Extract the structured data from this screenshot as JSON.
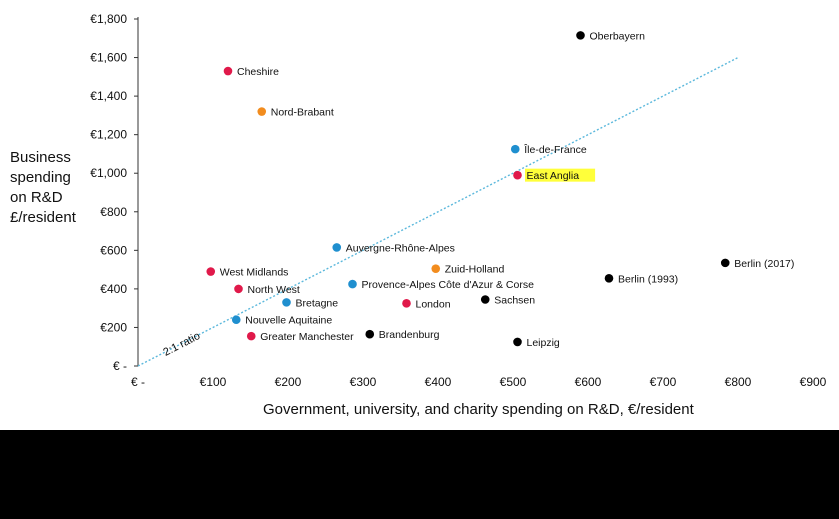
{
  "chart_data": {
    "type": "scatter",
    "title": "",
    "xlabel": "Government, university, and charity spending on R&D, €/resident",
    "ylabel": [
      "Business",
      "spending",
      "on R&D",
      "£/resident"
    ],
    "xlim": [
      0,
      900
    ],
    "ylim": [
      0,
      1800
    ],
    "x_ticks": [
      {
        "value": 0,
        "label": "€ -"
      },
      {
        "value": 100,
        "label": "€100"
      },
      {
        "value": 200,
        "label": "€200"
      },
      {
        "value": 300,
        "label": "€300"
      },
      {
        "value": 400,
        "label": "€400"
      },
      {
        "value": 500,
        "label": "€500"
      },
      {
        "value": 600,
        "label": "€600"
      },
      {
        "value": 700,
        "label": "€700"
      },
      {
        "value": 800,
        "label": "€800"
      },
      {
        "value": 900,
        "label": "€900"
      }
    ],
    "y_ticks": [
      {
        "value": 0,
        "label": "€ -"
      },
      {
        "value": 200,
        "label": "€200"
      },
      {
        "value": 400,
        "label": "€400"
      },
      {
        "value": 600,
        "label": "€600"
      },
      {
        "value": 800,
        "label": "€800"
      },
      {
        "value": 1000,
        "label": "€1,000"
      },
      {
        "value": 1200,
        "label": "€1,200"
      },
      {
        "value": 1400,
        "label": "€1,400"
      },
      {
        "value": 1600,
        "label": "€1,600"
      },
      {
        "value": 1800,
        "label": "€1,800"
      }
    ],
    "grid": false,
    "legend": "none",
    "colors": {
      "red": "#e0194a",
      "orange": "#f28c1e",
      "blue": "#1f8fcf",
      "black": "#000000",
      "ratio_line": "#5bb8dc",
      "highlight": "#ffff3a"
    },
    "reference_line": {
      "label": "2:1 ratio",
      "slope": 2,
      "x_range": [
        0,
        800
      ]
    },
    "points": [
      {
        "name": "Oberbayern",
        "x": 590,
        "y": 1715,
        "color": "black"
      },
      {
        "name": "Cheshire",
        "x": 120,
        "y": 1530,
        "color": "red"
      },
      {
        "name": "Nord-Brabant",
        "x": 165,
        "y": 1320,
        "color": "orange"
      },
      {
        "name": "Île-de-France",
        "x": 503,
        "y": 1125,
        "color": "blue"
      },
      {
        "name": "East Anglia",
        "x": 506,
        "y": 990,
        "color": "red",
        "highlight": true
      },
      {
        "name": "Auvergne-Rhône-Alpes",
        "x": 265,
        "y": 615,
        "color": "blue"
      },
      {
        "name": "West Midlands",
        "x": 97,
        "y": 490,
        "color": "red"
      },
      {
        "name": "Zuid-Holland",
        "x": 397,
        "y": 505,
        "color": "orange"
      },
      {
        "name": "Berlin (1993)",
        "x": 628,
        "y": 455,
        "color": "black"
      },
      {
        "name": "Berlin (2017)",
        "x": 783,
        "y": 535,
        "color": "black"
      },
      {
        "name": "North West",
        "x": 134,
        "y": 400,
        "color": "red"
      },
      {
        "name": "Provence-Alpes Côte d'Azur & Corse",
        "x": 286,
        "y": 425,
        "color": "blue"
      },
      {
        "name": "Bretagne",
        "x": 198,
        "y": 330,
        "color": "blue"
      },
      {
        "name": "London",
        "x": 358,
        "y": 325,
        "color": "red"
      },
      {
        "name": "Sachsen",
        "x": 463,
        "y": 345,
        "color": "black"
      },
      {
        "name": "Nouvelle Aquitaine",
        "x": 131,
        "y": 240,
        "color": "blue"
      },
      {
        "name": "Greater Manchester",
        "x": 151,
        "y": 155,
        "color": "red"
      },
      {
        "name": "Brandenburg",
        "x": 309,
        "y": 165,
        "color": "black"
      },
      {
        "name": "Leipzig",
        "x": 506,
        "y": 125,
        "color": "black"
      }
    ]
  }
}
